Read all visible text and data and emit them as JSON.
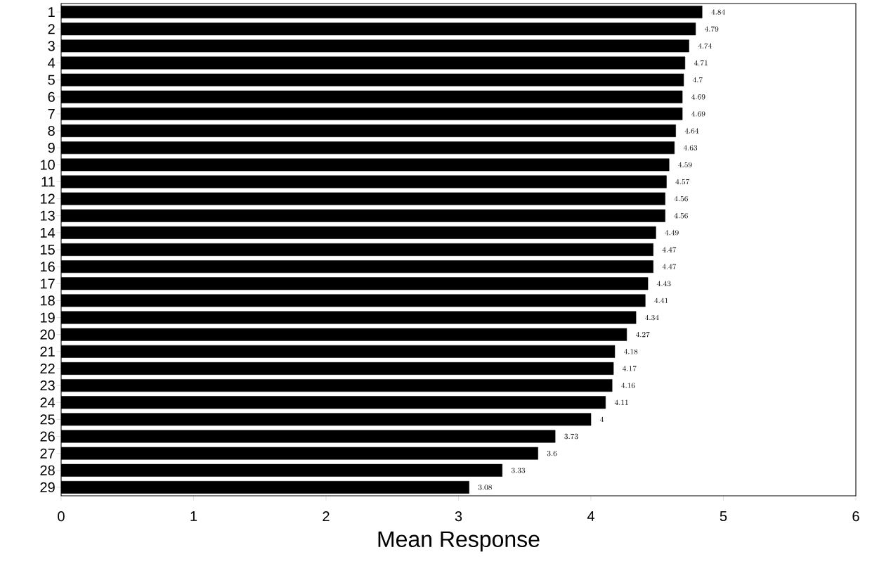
{
  "chart_data": {
    "type": "bar",
    "orientation": "horizontal",
    "xlabel": "Mean Response",
    "categories": [
      "1",
      "2",
      "3",
      "4",
      "5",
      "6",
      "7",
      "8",
      "9",
      "10",
      "11",
      "12",
      "13",
      "14",
      "15",
      "16",
      "17",
      "18",
      "19",
      "20",
      "21",
      "22",
      "23",
      "24",
      "25",
      "26",
      "27",
      "28",
      "29"
    ],
    "values": [
      4.84,
      4.79,
      4.74,
      4.71,
      4.7,
      4.69,
      4.69,
      4.64,
      4.63,
      4.59,
      4.57,
      4.56,
      4.56,
      4.49,
      4.47,
      4.47,
      4.43,
      4.41,
      4.34,
      4.27,
      4.18,
      4.17,
      4.16,
      4.11,
      4,
      3.73,
      3.6,
      3.33,
      3.08
    ],
    "color": "#000000",
    "xlim": [
      0,
      6
    ],
    "xticks": [
      0,
      1,
      2,
      3,
      4,
      5,
      6
    ],
    "data_labels": true,
    "grid": false
  }
}
